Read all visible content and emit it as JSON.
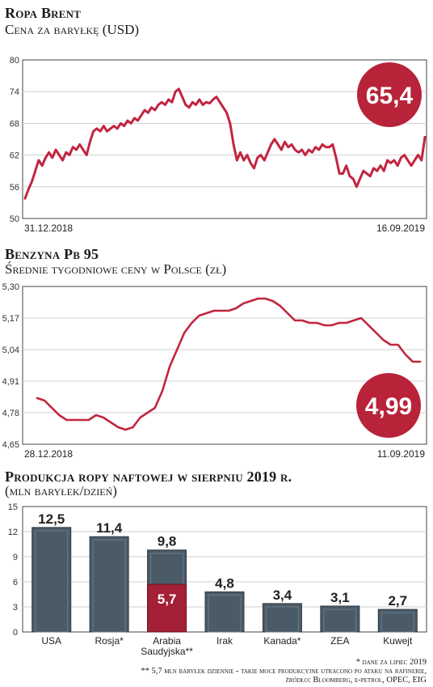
{
  "colors": {
    "line": "#c1253f",
    "badge": "#b8233a",
    "bar": "#4a5a66",
    "bar_light": "#6b7b87",
    "highlight": "#a32036",
    "grid": "#cfcfcf"
  },
  "brent": {
    "title": "Ropa Brent",
    "subtitle": "Cena za baryłkę (USD)",
    "badge": "65,4",
    "chart_data": {
      "type": "line",
      "title": "Ropa Brent",
      "ylabel": "Cena za baryłkę (USD)",
      "ylim": [
        50,
        80
      ],
      "yticks": [
        "80",
        "74",
        "68",
        "62",
        "56",
        "50"
      ],
      "ytick_values": [
        80,
        74,
        68,
        62,
        56,
        50
      ],
      "x_start_label": "31.12.2018",
      "x_end_label": "16.09.2019",
      "values": [
        53.8,
        55.5,
        57,
        59,
        61,
        60,
        61.5,
        62.5,
        61.5,
        63,
        62,
        61,
        62.5,
        62,
        63.5,
        63,
        64,
        63,
        62,
        64.5,
        66.5,
        67,
        66.5,
        67.5,
        66.5,
        67,
        67.5,
        67,
        68,
        67.5,
        68.5,
        68,
        69,
        68.5,
        69.5,
        70.5,
        70,
        71,
        70.5,
        71.5,
        72,
        71.5,
        72.5,
        72,
        74,
        74.5,
        73,
        71.5,
        71,
        72,
        71.5,
        72.5,
        71.5,
        72,
        71.8,
        72.5,
        73,
        72,
        71,
        70,
        68,
        64,
        61,
        62.5,
        61,
        62,
        60.5,
        59.5,
        61.5,
        62,
        61,
        62.5,
        64,
        65,
        64,
        63,
        64.5,
        63.5,
        64,
        63,
        62.5,
        63,
        62,
        63,
        62.5,
        63.5,
        63,
        64,
        63.5,
        63.5,
        64,
        61.5,
        58.5,
        58.5,
        60,
        58,
        57.5,
        56,
        57.5,
        59,
        58.5,
        58,
        59.5,
        59,
        60,
        59,
        61,
        60.5,
        61,
        60,
        61.5,
        62,
        61,
        60,
        61,
        62,
        61,
        65.4
      ]
    }
  },
  "benzyna": {
    "title": "Benzyna Pb 95",
    "subtitle": "Średnie tygodniowe ceny w Polsce (zł)",
    "badge": "4,99",
    "chart_data": {
      "type": "line",
      "title": "Benzyna Pb 95",
      "ylabel": "Średnie tygodniowe ceny w Polsce (zł)",
      "ylim": [
        4.65,
        5.3
      ],
      "yticks": [
        "5,30",
        "5,17",
        "5,04",
        "4,91",
        "4,78",
        "4,65"
      ],
      "ytick_values": [
        5.3,
        5.17,
        5.04,
        4.91,
        4.78,
        4.65
      ],
      "x_start_label": "28.12.2018",
      "x_end_label": "11.09.2019",
      "values": [
        4.84,
        4.83,
        4.8,
        4.77,
        4.75,
        4.75,
        4.75,
        4.75,
        4.77,
        4.76,
        4.74,
        4.72,
        4.71,
        4.72,
        4.76,
        4.78,
        4.8,
        4.87,
        4.97,
        5.04,
        5.11,
        5.15,
        5.18,
        5.19,
        5.2,
        5.2,
        5.2,
        5.21,
        5.23,
        5.24,
        5.25,
        5.25,
        5.24,
        5.22,
        5.19,
        5.16,
        5.16,
        5.15,
        5.15,
        5.14,
        5.14,
        5.15,
        5.15,
        5.16,
        5.17,
        5.14,
        5.11,
        5.08,
        5.06,
        5.06,
        5.02,
        4.99,
        4.99
      ]
    }
  },
  "produkcja": {
    "title": "Produkcja ropy naftowej w sierpniu 2019 r.",
    "subtitle": "(mln baryłek/dzień)",
    "chart_data": {
      "type": "bar",
      "title": "Produkcja ropy naftowej w sierpniu 2019 r.",
      "ylabel": "(mln baryłek/dzień)",
      "ylim": [
        0,
        15
      ],
      "yticks": [
        "15",
        "12",
        "9",
        "6",
        "3",
        "0"
      ],
      "ytick_values": [
        15,
        12,
        9,
        6,
        3,
        0
      ],
      "categories": [
        "USA",
        "Rosja*",
        "Arabia Saudyjska**",
        "Irak",
        "Kanada*",
        "ZEA",
        "Kuwejt"
      ],
      "category_lines": [
        [
          "USA"
        ],
        [
          "Rosja*"
        ],
        [
          "Arabia",
          "Saudyjska**"
        ],
        [
          "Irak"
        ],
        [
          "Kanada*"
        ],
        [
          "ZEA"
        ],
        [
          "Kuwejt"
        ]
      ],
      "values": [
        12.5,
        11.4,
        9.8,
        4.8,
        3.4,
        3.1,
        2.7
      ],
      "value_labels": [
        "12,5",
        "11,4",
        "9,8",
        "4,8",
        "3,4",
        "3,1",
        "2,7"
      ],
      "highlight": {
        "index": 2,
        "value": 5.7,
        "label": "5,7"
      }
    }
  },
  "footnotes": {
    "line1": "* dane za lipiec 2019",
    "line2": "** 5,7 mln baryłek dziennie - takie moce produkcyjne utracono po ataku na rafinerie,",
    "line3": "źródło: Bloomberg, e-petrol, OPEC, EIG"
  }
}
